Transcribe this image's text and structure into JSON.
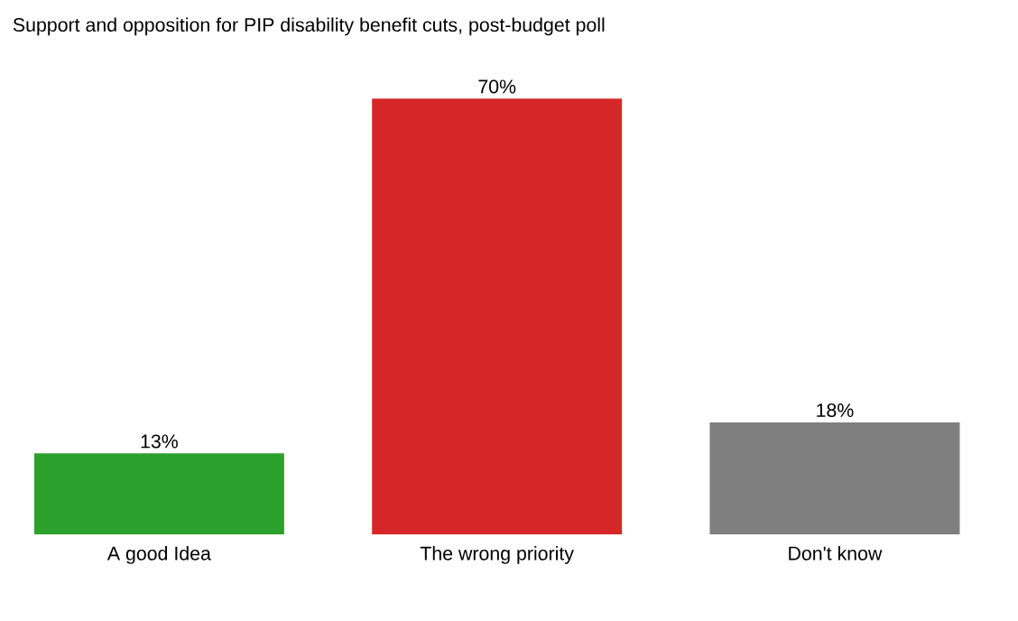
{
  "chart_data": {
    "type": "bar",
    "title": "Support and opposition for PIP disability benefit cuts, post-budget poll",
    "categories": [
      "A good Idea",
      "The wrong priority",
      "Don't know"
    ],
    "values": [
      13,
      70,
      18
    ],
    "colors": [
      "#2ca02c",
      "#d62728",
      "#7f7f7f"
    ],
    "value_labels": [
      "13%",
      "70%",
      "18%"
    ]
  }
}
